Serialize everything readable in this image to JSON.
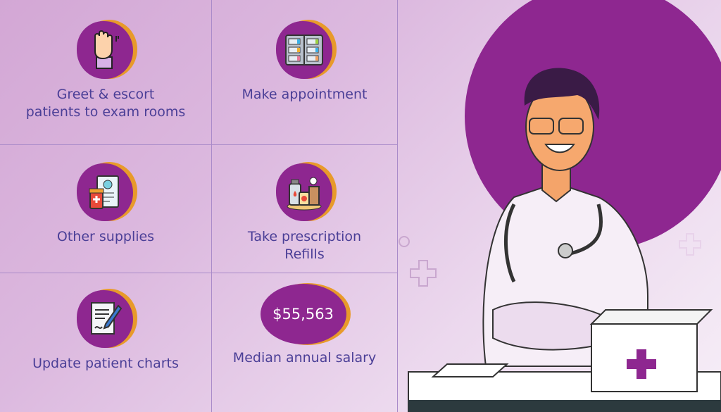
{
  "tasks": [
    {
      "label_lines": [
        "Greet & escort",
        "patients to exam rooms"
      ],
      "icon": "raised-hand-icon"
    },
    {
      "label_lines": [
        "Make appointment"
      ],
      "icon": "appointment-book-icon"
    },
    {
      "label_lines": [
        "Other supplies"
      ],
      "icon": "clipboard-medicine-icon"
    },
    {
      "label_lines": [
        "Take prescription",
        "Refills"
      ],
      "icon": "prescription-bottles-icon"
    },
    {
      "label_lines": [
        "Update patient charts"
      ],
      "icon": "chart-pen-icon"
    }
  ],
  "salary": {
    "value": "$55,563",
    "label": "Median annual salary"
  },
  "colors": {
    "accent": "#8e2790",
    "orange": "#e89a2a",
    "text": "#4b3f97"
  }
}
